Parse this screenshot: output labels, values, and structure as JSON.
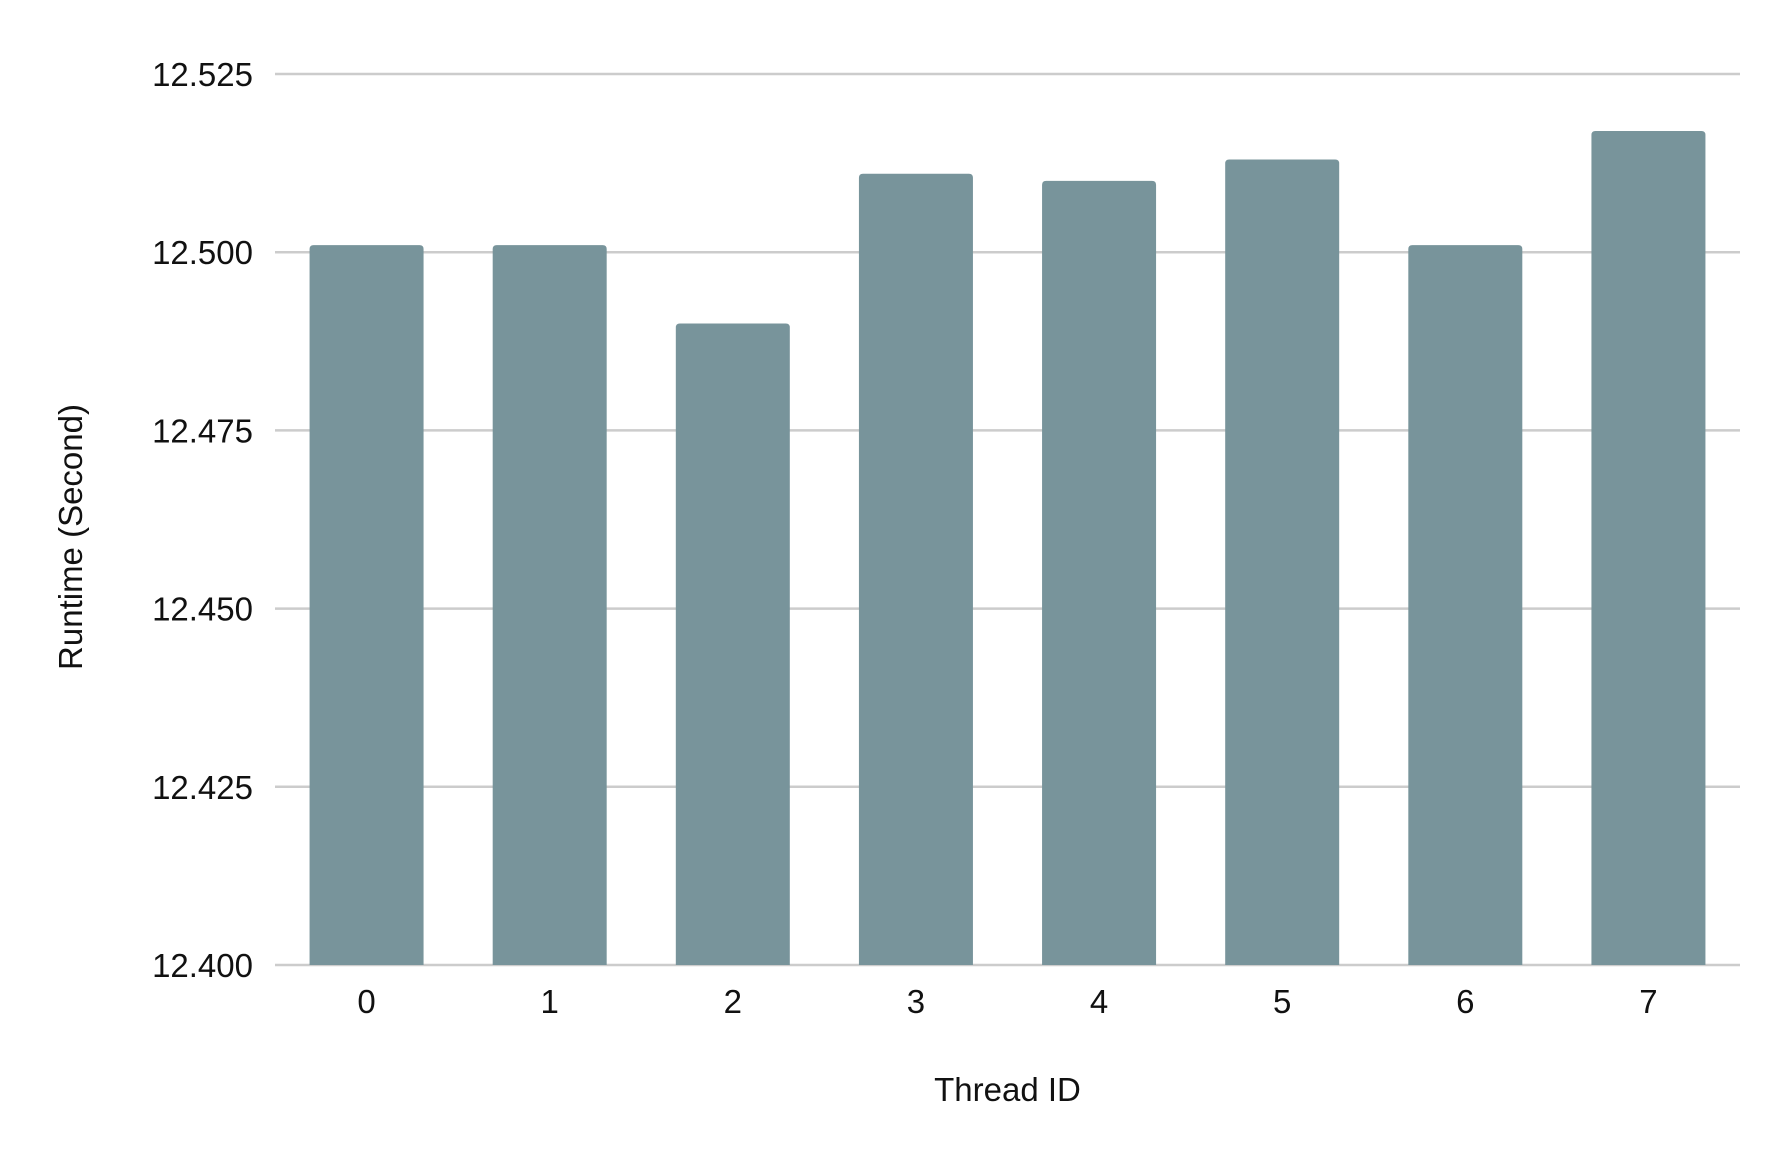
{
  "chart_data": {
    "type": "bar",
    "title": "",
    "xlabel": "Thread ID",
    "ylabel": "Runtime (Second)",
    "categories": [
      "0",
      "1",
      "2",
      "3",
      "4",
      "5",
      "6",
      "7"
    ],
    "values": [
      12.501,
      12.501,
      12.49,
      12.511,
      12.51,
      12.513,
      12.501,
      12.517
    ],
    "ylim": [
      12.4,
      12.525
    ],
    "yticks": [
      "12.400",
      "12.425",
      "12.450",
      "12.475",
      "12.500",
      "12.525"
    ],
    "ytick_values": [
      12.4,
      12.425,
      12.45,
      12.475,
      12.5,
      12.525
    ],
    "grid": true,
    "legend": "none",
    "colors": {
      "bar": "#78949b",
      "grid": "#cccccc",
      "text": "#111111"
    }
  }
}
